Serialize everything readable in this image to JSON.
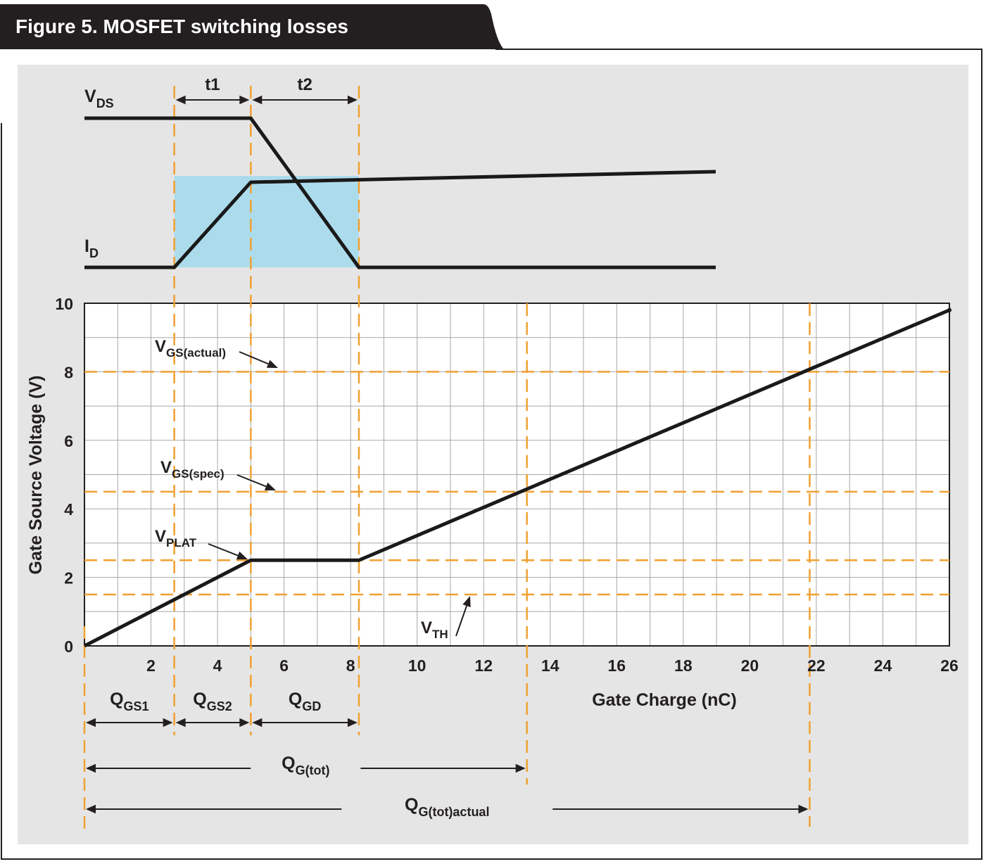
{
  "figure_title": "Figure 5. MOSFET switching losses",
  "colors": {
    "panel_background": "#e5e5e5",
    "guide_lines": "#f0a030",
    "loss_area": "#acdcec",
    "curve": "#1a1a1a",
    "grid": "#a8a8a8",
    "title_bar": "#231f20"
  },
  "waveform_labels": {
    "vds": {
      "main": "V",
      "sub": "DS"
    },
    "id": {
      "main": "I",
      "sub": "D"
    },
    "t1": "t1",
    "t2": "t2"
  },
  "chart_data": {
    "type": "line",
    "xlabel": "Gate Charge (nC)",
    "ylabel": "Gate Source Voltage (V)",
    "xlim": [
      0,
      26
    ],
    "ylim": [
      0,
      10
    ],
    "x_ticks": [
      "2",
      "4",
      "6",
      "8",
      "10",
      "12",
      "14",
      "16",
      "18",
      "20",
      "22",
      "24",
      "26"
    ],
    "y_ticks": [
      "0",
      "2",
      "4",
      "6",
      "8",
      "10"
    ],
    "grid": true,
    "series": [
      {
        "x": [
          0,
          5.0,
          8.25,
          26
        ],
        "y": [
          0,
          2.5,
          2.5,
          9.8
        ]
      }
    ],
    "reference_lines_y": [
      {
        "y": 8,
        "label": {
          "main": "V",
          "sub": "GS(actual)"
        }
      },
      {
        "y": 4.5,
        "label": {
          "main": "V",
          "sub": "GS(spec)"
        }
      },
      {
        "y": 2.5,
        "label": {
          "main": "V",
          "sub": "PLAT"
        }
      },
      {
        "y": 1.5,
        "label": {
          "main": "V",
          "sub": "TH"
        }
      }
    ],
    "reference_lines_x": [
      2.7,
      5.0,
      8.25,
      13.3,
      21.8
    ],
    "charge_intervals": [
      {
        "from": 0,
        "to": 2.7,
        "label": {
          "main": "Q",
          "sub": "GS1"
        }
      },
      {
        "from": 2.7,
        "to": 5.0,
        "label": {
          "main": "Q",
          "sub": "GS2"
        }
      },
      {
        "from": 5.0,
        "to": 8.25,
        "label": {
          "main": "Q",
          "sub": "GD"
        }
      },
      {
        "from": 0,
        "to": 13.3,
        "label": {
          "main": "Q",
          "sub": "G(tot)"
        }
      },
      {
        "from": 0,
        "to": 21.8,
        "label": {
          "main": "Q",
          "sub": "G(tot)actual"
        }
      }
    ]
  }
}
